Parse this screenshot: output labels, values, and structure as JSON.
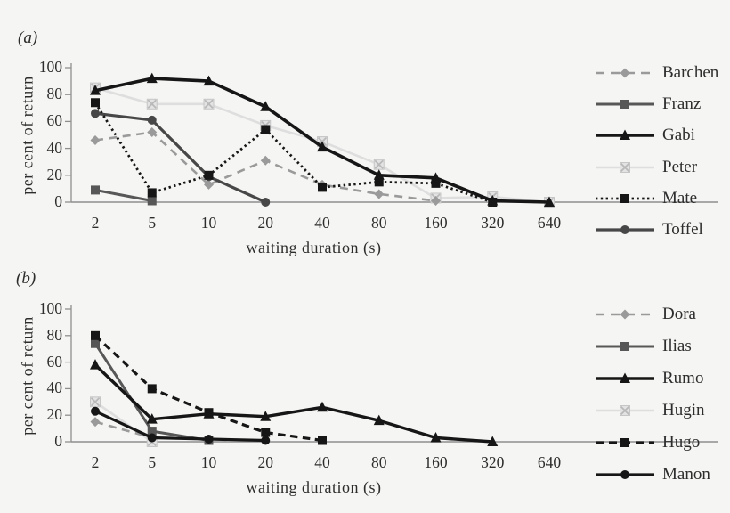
{
  "figure": {
    "background": "#f5f5f3",
    "axis_color": "#8f8f8f",
    "text_color": "#2d2d2d"
  },
  "chart_data": [
    {
      "type": "line",
      "panel_label": "(a)",
      "xlabel": "waiting  duration (s)",
      "ylabel": "per cent  of  return",
      "x_categories": [
        2,
        5,
        10,
        20,
        40,
        80,
        160,
        320,
        640
      ],
      "x_tick_labels": [
        "2",
        "5",
        "10",
        "20",
        "40",
        "80",
        "160",
        "320",
        "640"
      ],
      "y_ticks": [
        0,
        20,
        40,
        60,
        80,
        100
      ],
      "ylim": [
        0,
        100
      ],
      "grid": false,
      "legend_position": "right",
      "series": [
        {
          "name": "Barchen",
          "color": "#9a9a9a",
          "line": "dashed",
          "marker": "diamond",
          "width": 2.6,
          "z": 1,
          "values": [
            46,
            52,
            13,
            31,
            13,
            6,
            1,
            null,
            null
          ]
        },
        {
          "name": "Franz",
          "color": "#575757",
          "line": "solid",
          "marker": "square",
          "width": 3.0,
          "z": 2,
          "values": [
            9,
            1,
            null,
            null,
            null,
            null,
            null,
            null,
            null
          ]
        },
        {
          "name": "Gabi",
          "color": "#161616",
          "line": "solid",
          "marker": "triangle",
          "width": 3.6,
          "z": 5,
          "values": [
            83,
            92,
            90,
            71,
            41,
            20,
            18,
            1,
            0
          ]
        },
        {
          "name": "Peter",
          "color": "#dedede",
          "line": "solid",
          "marker": "x-square",
          "width": 2.6,
          "z": 0,
          "values": [
            85,
            73,
            73,
            57,
            45,
            28,
            3,
            4,
            0
          ]
        },
        {
          "name": "Mate",
          "color": "#161616",
          "line": "dotted",
          "marker": "square",
          "width": 2.8,
          "z": 4,
          "values": [
            74,
            7,
            20,
            54,
            11,
            15,
            14,
            0,
            null
          ]
        },
        {
          "name": "Toffel",
          "color": "#474747",
          "line": "solid",
          "marker": "circle",
          "width": 3.2,
          "z": 3,
          "values": [
            66,
            61,
            19,
            0,
            null,
            null,
            null,
            null,
            null
          ]
        }
      ]
    },
    {
      "type": "line",
      "panel_label": "(b)",
      "xlabel": "waiting  duration (s)",
      "ylabel": "per cent  of  return",
      "x_categories": [
        2,
        5,
        10,
        20,
        40,
        80,
        160,
        320,
        640
      ],
      "x_tick_labels": [
        "2",
        "5",
        "10",
        "20",
        "40",
        "80",
        "160",
        "320",
        "640"
      ],
      "y_ticks": [
        0,
        20,
        40,
        60,
        80,
        100
      ],
      "ylim": [
        0,
        100
      ],
      "grid": false,
      "legend_position": "right",
      "series": [
        {
          "name": "Dora",
          "color": "#9a9a9a",
          "line": "dashed",
          "marker": "diamond",
          "width": 2.6,
          "z": 1,
          "values": [
            15,
            3,
            null,
            null,
            null,
            null,
            null,
            null,
            null
          ]
        },
        {
          "name": "Ilias",
          "color": "#575757",
          "line": "solid",
          "marker": "square",
          "width": 3.0,
          "z": 2,
          "values": [
            74,
            8,
            1,
            null,
            null,
            null,
            null,
            null,
            null
          ]
        },
        {
          "name": "Rumo",
          "color": "#161616",
          "line": "solid",
          "marker": "triangle",
          "width": 3.4,
          "z": 4,
          "values": [
            58,
            17,
            21,
            19,
            26,
            16,
            3,
            0,
            null
          ]
        },
        {
          "name": "Hugin",
          "color": "#dedede",
          "line": "solid",
          "marker": "x-square",
          "width": 2.6,
          "z": 0,
          "values": [
            30,
            0,
            null,
            null,
            null,
            null,
            null,
            null,
            null
          ]
        },
        {
          "name": "Hugo",
          "color": "#161616",
          "line": "longdash",
          "marker": "square",
          "width": 3.2,
          "z": 5,
          "values": [
            80,
            40,
            22,
            7,
            1,
            null,
            null,
            null,
            null
          ]
        },
        {
          "name": "Manon",
          "color": "#161616",
          "line": "solid",
          "marker": "circle",
          "width": 3.2,
          "z": 3,
          "values": [
            23,
            3,
            2,
            1,
            null,
            null,
            null,
            null,
            null
          ]
        }
      ]
    }
  ]
}
